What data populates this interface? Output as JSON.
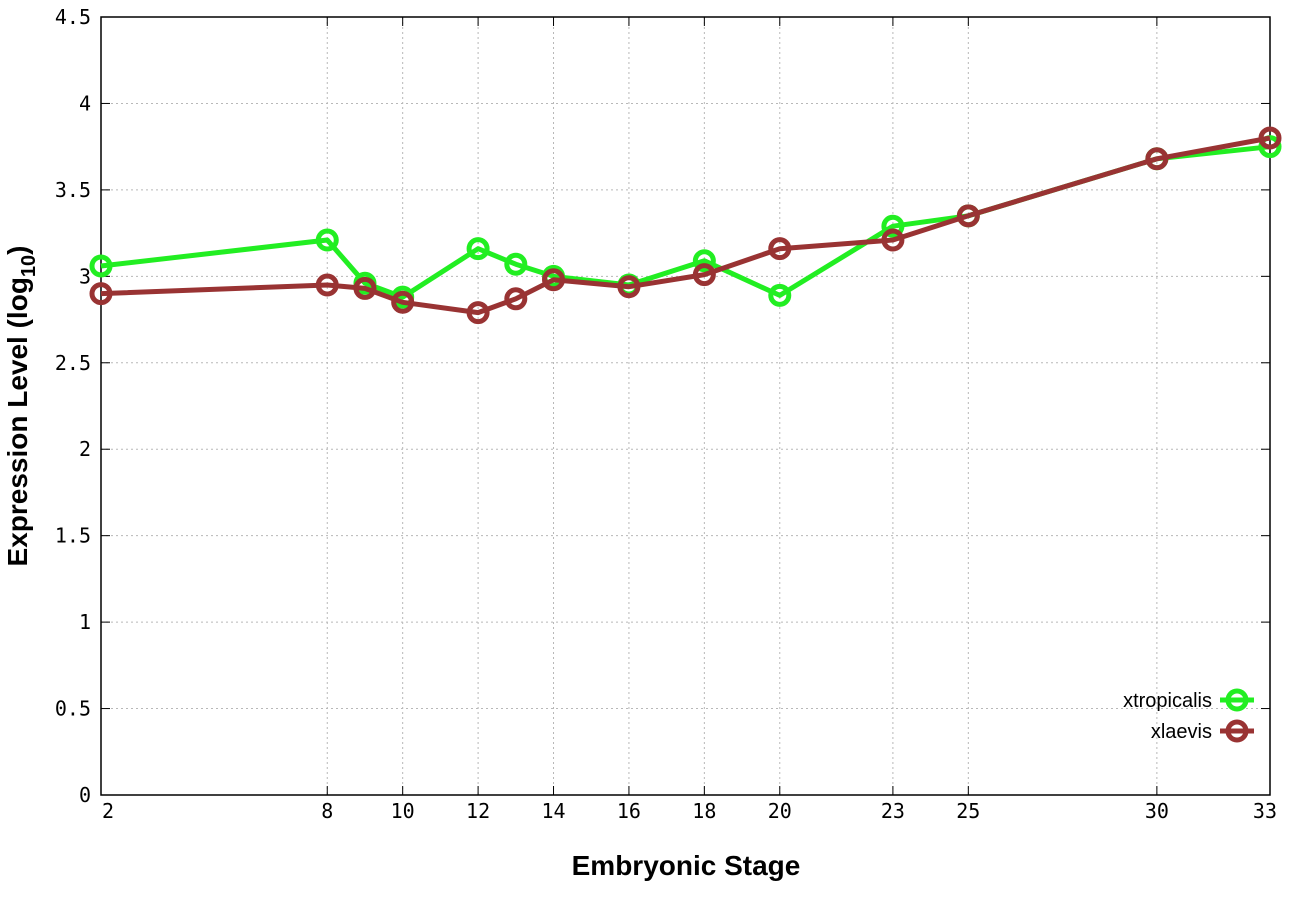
{
  "chart_data": {
    "type": "line",
    "title": "",
    "xlabel": "Embryonic Stage",
    "ylabel": "Expression Level (log",
    "ylabel_sub": "10",
    "ylabel_close": ")",
    "x": [
      2,
      8,
      9,
      10,
      12,
      13,
      14,
      16,
      18,
      20,
      23,
      25,
      30,
      33
    ],
    "xticks": [
      2,
      8,
      10,
      12,
      14,
      16,
      18,
      20,
      23,
      25,
      30,
      33
    ],
    "xtick_labels": [
      "2",
      "8",
      "10",
      "12",
      "14",
      "16",
      "18",
      "20",
      "23",
      "25",
      "30",
      "33"
    ],
    "yticks": [
      0,
      0.5,
      1,
      1.5,
      2,
      2.5,
      3,
      3.5,
      4,
      4.5
    ],
    "ytick_labels": [
      "0",
      "0.5",
      "1",
      "1.5",
      "2",
      "2.5",
      "3",
      "3.5",
      "4",
      "4.5"
    ],
    "xlim": [
      2,
      33
    ],
    "ylim": [
      0,
      4.5
    ],
    "grid": true,
    "legend_position": "bottom-right",
    "series": [
      {
        "name": "xtropicalis",
        "color": "#22ee22",
        "values": [
          3.06,
          3.21,
          2.96,
          2.88,
          3.16,
          3.07,
          3.0,
          2.95,
          3.09,
          2.89,
          3.29,
          3.35,
          3.68,
          3.75
        ]
      },
      {
        "name": "xlaevis",
        "color": "#993333",
        "values": [
          2.9,
          2.95,
          2.93,
          2.85,
          2.79,
          2.87,
          2.98,
          2.94,
          3.01,
          3.16,
          3.21,
          3.35,
          3.68,
          3.8
        ]
      }
    ]
  }
}
